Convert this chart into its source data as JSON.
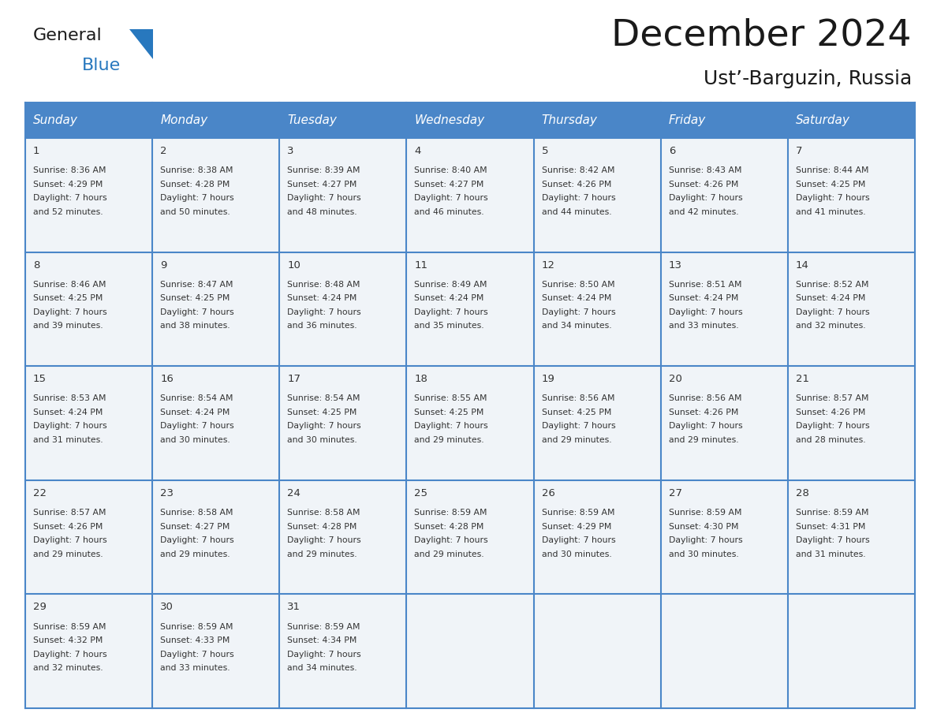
{
  "title": "December 2024",
  "subtitle": "Ust’-Barguzin, Russia",
  "header_bg_color": "#4a86c8",
  "header_text_color": "#ffffff",
  "cell_bg_color": "#f0f4f8",
  "grid_line_color": "#4a86c8",
  "text_color": "#333333",
  "day_headers": [
    "Sunday",
    "Monday",
    "Tuesday",
    "Wednesday",
    "Thursday",
    "Friday",
    "Saturday"
  ],
  "days_data": [
    {
      "day": 1,
      "col": 0,
      "row": 0,
      "sunrise": "8:36 AM",
      "sunset": "4:29 PM",
      "daylight_mins": "52 minutes."
    },
    {
      "day": 2,
      "col": 1,
      "row": 0,
      "sunrise": "8:38 AM",
      "sunset": "4:28 PM",
      "daylight_mins": "50 minutes."
    },
    {
      "day": 3,
      "col": 2,
      "row": 0,
      "sunrise": "8:39 AM",
      "sunset": "4:27 PM",
      "daylight_mins": "48 minutes."
    },
    {
      "day": 4,
      "col": 3,
      "row": 0,
      "sunrise": "8:40 AM",
      "sunset": "4:27 PM",
      "daylight_mins": "46 minutes."
    },
    {
      "day": 5,
      "col": 4,
      "row": 0,
      "sunrise": "8:42 AM",
      "sunset": "4:26 PM",
      "daylight_mins": "44 minutes."
    },
    {
      "day": 6,
      "col": 5,
      "row": 0,
      "sunrise": "8:43 AM",
      "sunset": "4:26 PM",
      "daylight_mins": "42 minutes."
    },
    {
      "day": 7,
      "col": 6,
      "row": 0,
      "sunrise": "8:44 AM",
      "sunset": "4:25 PM",
      "daylight_mins": "41 minutes."
    },
    {
      "day": 8,
      "col": 0,
      "row": 1,
      "sunrise": "8:46 AM",
      "sunset": "4:25 PM",
      "daylight_mins": "39 minutes."
    },
    {
      "day": 9,
      "col": 1,
      "row": 1,
      "sunrise": "8:47 AM",
      "sunset": "4:25 PM",
      "daylight_mins": "38 minutes."
    },
    {
      "day": 10,
      "col": 2,
      "row": 1,
      "sunrise": "8:48 AM",
      "sunset": "4:24 PM",
      "daylight_mins": "36 minutes."
    },
    {
      "day": 11,
      "col": 3,
      "row": 1,
      "sunrise": "8:49 AM",
      "sunset": "4:24 PM",
      "daylight_mins": "35 minutes."
    },
    {
      "day": 12,
      "col": 4,
      "row": 1,
      "sunrise": "8:50 AM",
      "sunset": "4:24 PM",
      "daylight_mins": "34 minutes."
    },
    {
      "day": 13,
      "col": 5,
      "row": 1,
      "sunrise": "8:51 AM",
      "sunset": "4:24 PM",
      "daylight_mins": "33 minutes."
    },
    {
      "day": 14,
      "col": 6,
      "row": 1,
      "sunrise": "8:52 AM",
      "sunset": "4:24 PM",
      "daylight_mins": "32 minutes."
    },
    {
      "day": 15,
      "col": 0,
      "row": 2,
      "sunrise": "8:53 AM",
      "sunset": "4:24 PM",
      "daylight_mins": "31 minutes."
    },
    {
      "day": 16,
      "col": 1,
      "row": 2,
      "sunrise": "8:54 AM",
      "sunset": "4:24 PM",
      "daylight_mins": "30 minutes."
    },
    {
      "day": 17,
      "col": 2,
      "row": 2,
      "sunrise": "8:54 AM",
      "sunset": "4:25 PM",
      "daylight_mins": "30 minutes."
    },
    {
      "day": 18,
      "col": 3,
      "row": 2,
      "sunrise": "8:55 AM",
      "sunset": "4:25 PM",
      "daylight_mins": "29 minutes."
    },
    {
      "day": 19,
      "col": 4,
      "row": 2,
      "sunrise": "8:56 AM",
      "sunset": "4:25 PM",
      "daylight_mins": "29 minutes."
    },
    {
      "day": 20,
      "col": 5,
      "row": 2,
      "sunrise": "8:56 AM",
      "sunset": "4:26 PM",
      "daylight_mins": "29 minutes."
    },
    {
      "day": 21,
      "col": 6,
      "row": 2,
      "sunrise": "8:57 AM",
      "sunset": "4:26 PM",
      "daylight_mins": "28 minutes."
    },
    {
      "day": 22,
      "col": 0,
      "row": 3,
      "sunrise": "8:57 AM",
      "sunset": "4:26 PM",
      "daylight_mins": "29 minutes."
    },
    {
      "day": 23,
      "col": 1,
      "row": 3,
      "sunrise": "8:58 AM",
      "sunset": "4:27 PM",
      "daylight_mins": "29 minutes."
    },
    {
      "day": 24,
      "col": 2,
      "row": 3,
      "sunrise": "8:58 AM",
      "sunset": "4:28 PM",
      "daylight_mins": "29 minutes."
    },
    {
      "day": 25,
      "col": 3,
      "row": 3,
      "sunrise": "8:59 AM",
      "sunset": "4:28 PM",
      "daylight_mins": "29 minutes."
    },
    {
      "day": 26,
      "col": 4,
      "row": 3,
      "sunrise": "8:59 AM",
      "sunset": "4:29 PM",
      "daylight_mins": "30 minutes."
    },
    {
      "day": 27,
      "col": 5,
      "row": 3,
      "sunrise": "8:59 AM",
      "sunset": "4:30 PM",
      "daylight_mins": "30 minutes."
    },
    {
      "day": 28,
      "col": 6,
      "row": 3,
      "sunrise": "8:59 AM",
      "sunset": "4:31 PM",
      "daylight_mins": "31 minutes."
    },
    {
      "day": 29,
      "col": 0,
      "row": 4,
      "sunrise": "8:59 AM",
      "sunset": "4:32 PM",
      "daylight_mins": "32 minutes."
    },
    {
      "day": 30,
      "col": 1,
      "row": 4,
      "sunrise": "8:59 AM",
      "sunset": "4:33 PM",
      "daylight_mins": "33 minutes."
    },
    {
      "day": 31,
      "col": 2,
      "row": 4,
      "sunrise": "8:59 AM",
      "sunset": "4:34 PM",
      "daylight_mins": "34 minutes."
    }
  ],
  "logo_general_color": "#1a1a1a",
  "logo_blue_color": "#2878be",
  "logo_triangle_color": "#2878be",
  "fig_width": 11.88,
  "fig_height": 9.18,
  "dpi": 100
}
